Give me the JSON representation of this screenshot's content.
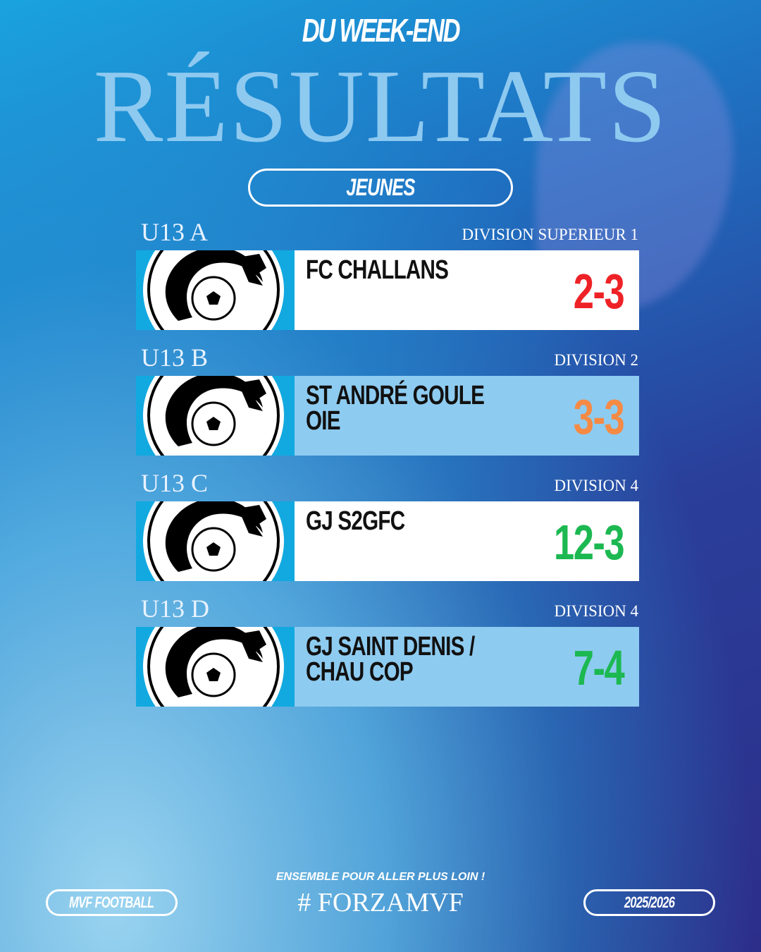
{
  "header": {
    "title": "RÉSULTATS",
    "subtitle": "DU WEEK-END",
    "category": "JEUNES"
  },
  "results": [
    {
      "team_cat": "U13 A",
      "division": "DIVISION SUPERIEUR 1",
      "opponent": "FC CHALLANS",
      "score": "2-3",
      "score_color": "#ee2226",
      "card_color": "#ffffff"
    },
    {
      "team_cat": "U13 B",
      "division": "DIVISION 2",
      "opponent": "ST ANDRÉ GOULE OIE",
      "score": "3-3",
      "score_color": "#f58a45",
      "card_color": "#8ecbf0"
    },
    {
      "team_cat": "U13 C",
      "division": "DIVISION 4",
      "opponent": "GJ S2GFC",
      "score": "12-3",
      "score_color": "#1cb851",
      "card_color": "#ffffff"
    },
    {
      "team_cat": "U13 D",
      "division": "DIVISION 4",
      "opponent": "GJ SAINT DENIS / CHAU COP",
      "score": "7-4",
      "score_color": "#1cb851",
      "card_color": "#8ecbf0"
    }
  ],
  "footer": {
    "left": "MVF FOOTBALL",
    "slogan": "ENSEMBLE POUR ALLER PLUS LOIN !",
    "hashtag": "# FORZAMVF",
    "season": "2025/2026"
  }
}
